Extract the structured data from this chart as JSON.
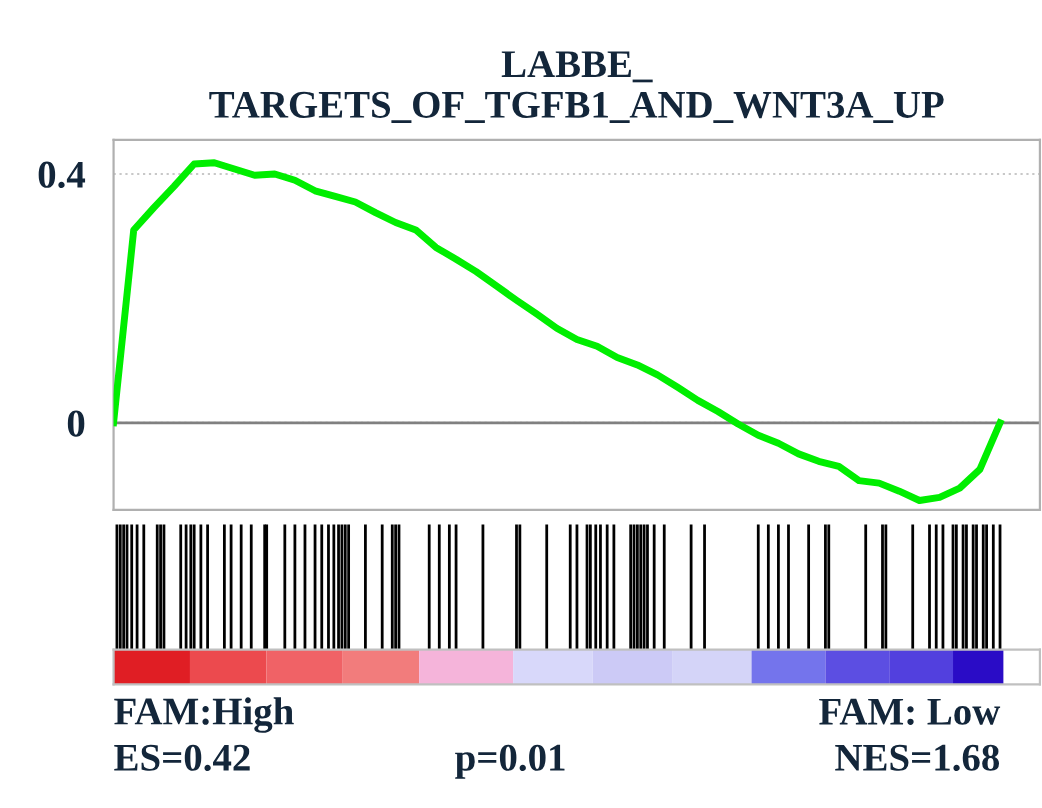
{
  "chart_data": {
    "type": "line",
    "title": "LABBE_\nTARGETS_OF_TGFB1_AND_WNT3A_UP",
    "categories": [
      null,
      null,
      null,
      null,
      null,
      null,
      null,
      null,
      null,
      null,
      null,
      null,
      null,
      null,
      null,
      null,
      null,
      null,
      null,
      null,
      null,
      null,
      null,
      null,
      null,
      null,
      null,
      null,
      null,
      null,
      null,
      null,
      null,
      null,
      null,
      null,
      null,
      null,
      null,
      null,
      null,
      null,
      null,
      null,
      null
    ],
    "series": [
      {
        "color": "#00ee00",
        "values": [
          0,
          0.31,
          0.346,
          0.38,
          0.416,
          0.418,
          0.408,
          0.398,
          0.4,
          0.39,
          0.373,
          0.364,
          0.355,
          0.338,
          0.322,
          0.31,
          0.282,
          0.263,
          0.243,
          0.22,
          0.197,
          0.175,
          0.152,
          0.134,
          0.123,
          0.105,
          0.093,
          0.077,
          0.057,
          0.036,
          0.018,
          -0.002,
          -0.02,
          -0.033,
          -0.05,
          -0.062,
          -0.07,
          -0.093,
          -0.097,
          -0.11,
          -0.125,
          -0.12,
          -0.105,
          -0.075,
          0
        ]
      }
    ],
    "ylim": [
      -0.14,
      0.455
    ],
    "yticks": [
      0,
      0.4
    ],
    "grid": true,
    "line_style": "solid",
    "marker": "none",
    "tick_labels": "y",
    "ref_lines": [
      {
        "axis": "y",
        "value": 0,
        "color": "#808080"
      }
    ],
    "annotations": [
      "FAM:High",
      "ES=0.42",
      "p=0.01",
      "FAM: Low",
      "NES=1.68"
    ]
  }
}
